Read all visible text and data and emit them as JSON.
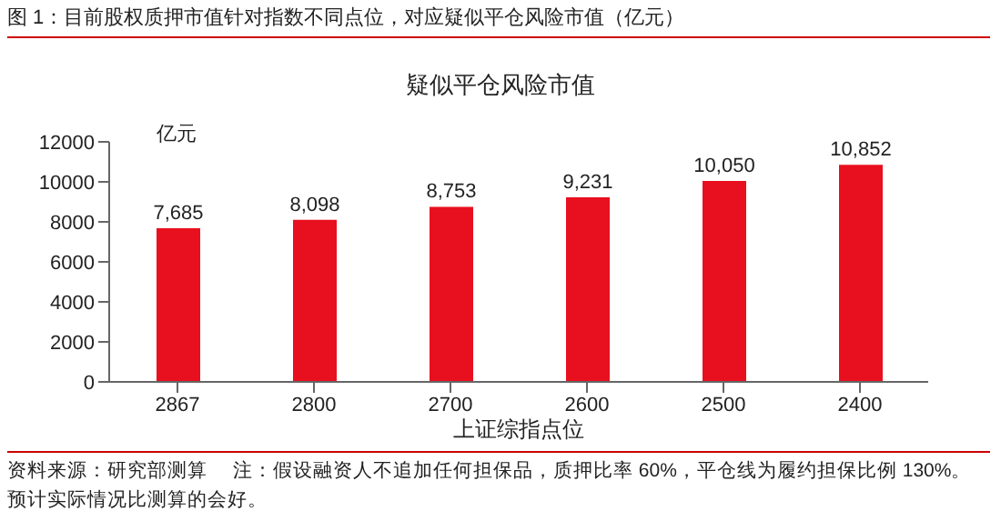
{
  "chart_data": {
    "type": "bar",
    "title": "图 1：目前股权质押市值针对指数不同点位，对应疑似平仓风险市值（亿元）",
    "subtitle": "疑似平仓风险市值",
    "xlabel": "上证综指点位",
    "ylabel": "亿元",
    "categories": [
      "2867",
      "2800",
      "2700",
      "2600",
      "2500",
      "2400"
    ],
    "series": [
      {
        "color": "#e8101f",
        "values": [
          7685,
          8098,
          8753,
          9231,
          10050,
          10852
        ]
      }
    ],
    "value_labels": [
      "7,685",
      "8,098",
      "8,753",
      "9,231",
      "10,050",
      "10,852"
    ],
    "ylim": [
      0,
      12000
    ],
    "yticks": [
      0,
      2000,
      4000,
      6000,
      8000,
      10000,
      12000
    ],
    "grid": false,
    "legend": false,
    "annotations": [
      "资料来源：研究部测算",
      "注：假设融资人不追加任何担保品，质押比率 60%，平仓线为履约担保比例 130%。预计实际情况比测算的会好。"
    ]
  }
}
